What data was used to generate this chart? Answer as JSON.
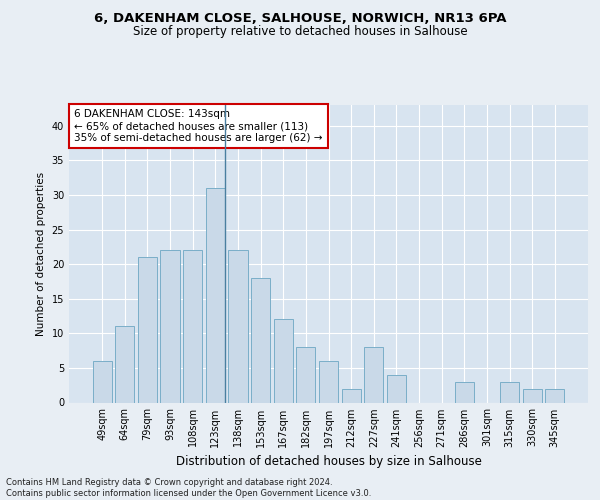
{
  "title1": "6, DAKENHAM CLOSE, SALHOUSE, NORWICH, NR13 6PA",
  "title2": "Size of property relative to detached houses in Salhouse",
  "xlabel": "Distribution of detached houses by size in Salhouse",
  "ylabel": "Number of detached properties",
  "categories": [
    "49sqm",
    "64sqm",
    "79sqm",
    "93sqm",
    "108sqm",
    "123sqm",
    "138sqm",
    "153sqm",
    "167sqm",
    "182sqm",
    "197sqm",
    "212sqm",
    "227sqm",
    "241sqm",
    "256sqm",
    "271sqm",
    "286sqm",
    "301sqm",
    "315sqm",
    "330sqm",
    "345sqm"
  ],
  "values": [
    6,
    11,
    21,
    22,
    22,
    31,
    22,
    18,
    12,
    8,
    6,
    2,
    8,
    4,
    0,
    0,
    3,
    0,
    3,
    2,
    2
  ],
  "bar_color": "#c9d9e8",
  "bar_edge_color": "#7aaec8",
  "highlight_index": 5,
  "highlight_line_color": "#4a7fa0",
  "annotation_box_text": "6 DAKENHAM CLOSE: 143sqm\n← 65% of detached houses are smaller (113)\n35% of semi-detached houses are larger (62) →",
  "annotation_box_color": "#ffffff",
  "annotation_box_edge_color": "#cc0000",
  "footer_text": "Contains HM Land Registry data © Crown copyright and database right 2024.\nContains public sector information licensed under the Open Government Licence v3.0.",
  "ylim": [
    0,
    43
  ],
  "yticks": [
    0,
    5,
    10,
    15,
    20,
    25,
    30,
    35,
    40
  ],
  "background_color": "#e8eef4",
  "plot_bg_color": "#d8e4f0",
  "title1_fontsize": 9.5,
  "title2_fontsize": 8.5,
  "xlabel_fontsize": 8.5,
  "ylabel_fontsize": 7.5,
  "tick_fontsize": 7,
  "ann_fontsize": 7.5,
  "footer_fontsize": 6
}
